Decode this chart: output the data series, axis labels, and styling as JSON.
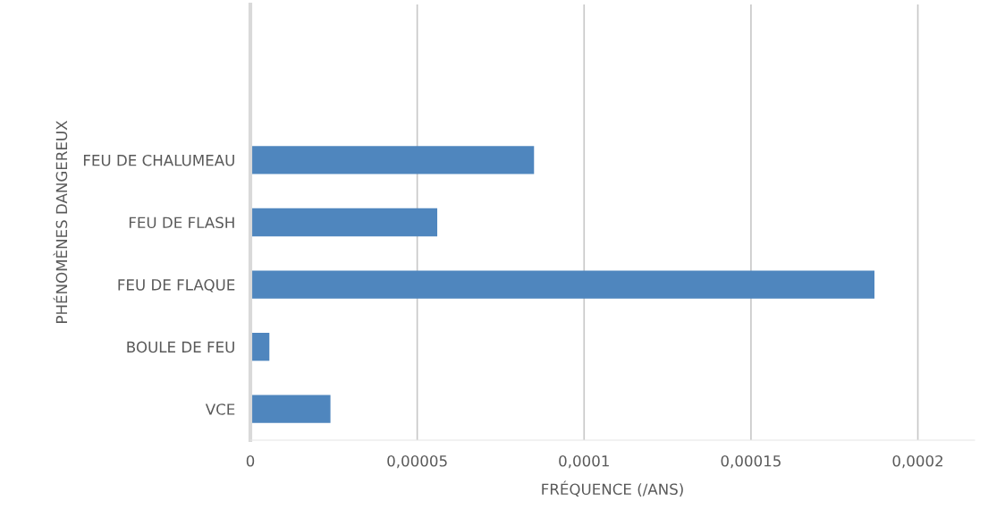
{
  "chart_data": {
    "type": "bar",
    "orientation": "horizontal",
    "xlabel": "FRÉQUENCE (/ANS)",
    "ylabel": "PHÉNOMÈNES DANGEREUX",
    "categories": [
      null,
      null,
      "FEU DE CHALUMEAU",
      "FEU DE FLASH",
      "FEU DE FLAQUE",
      "BOULE DE FEU",
      "VCE"
    ],
    "values": [
      null,
      null,
      8.5e-05,
      5.6e-05,
      0.000187,
      5.7e-06,
      2.4e-05
    ],
    "color": "#4f86be",
    "xlim": [
      0,
      0.000217
    ],
    "xticks": [
      0,
      {
        "value": 5e-05,
        "label": "0,00005"
      },
      {
        "value": 0.0001,
        "label": "0,0001"
      },
      {
        "value": 0.00015,
        "label": "0,00015"
      },
      {
        "value": 0.0002,
        "label": "0,0002"
      }
    ],
    "grid": "x"
  }
}
